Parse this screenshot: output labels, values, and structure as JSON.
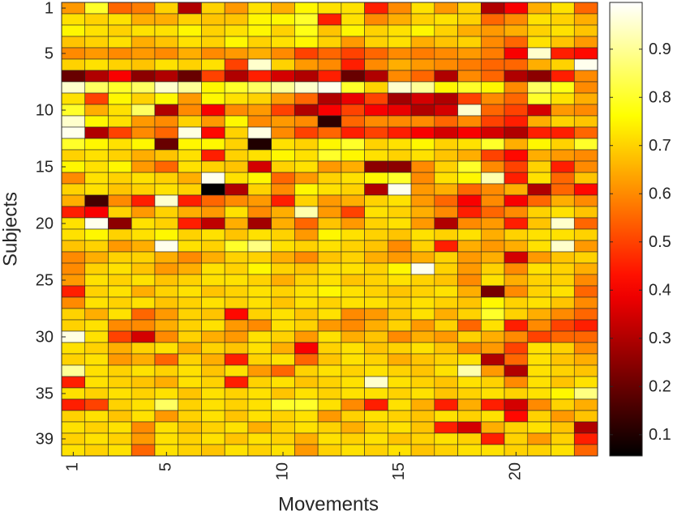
{
  "chart_data": {
    "type": "heatmap",
    "colormap": "hot",
    "x_label": "Movements",
    "y_label": "Subjects",
    "xlim": [
      0.5,
      23.5
    ],
    "ylim": [
      0.5,
      40.5
    ],
    "y_reversed": true,
    "xticks": [
      1,
      5,
      10,
      15,
      20
    ],
    "yticks": [
      1,
      5,
      10,
      15,
      20,
      25,
      30,
      35,
      39
    ],
    "clim": [
      0.056,
      0.997
    ],
    "cticks": [
      0.1,
      0.2,
      0.3,
      0.4,
      0.5,
      0.6,
      0.7,
      0.8,
      0.9
    ],
    "values": [
      [
        0.62,
        0.8,
        0.55,
        0.58,
        0.7,
        0.3,
        0.7,
        0.62,
        0.72,
        0.65,
        0.75,
        0.72,
        0.72,
        0.45,
        0.6,
        0.72,
        0.62,
        0.7,
        0.3,
        0.4,
        0.65,
        0.72,
        0.55
      ],
      [
        0.72,
        0.7,
        0.72,
        0.65,
        0.65,
        0.7,
        0.68,
        0.68,
        0.75,
        0.75,
        0.8,
        0.45,
        0.72,
        0.6,
        0.65,
        0.7,
        0.72,
        0.7,
        0.55,
        0.6,
        0.72,
        0.7,
        0.65
      ],
      [
        0.75,
        0.72,
        0.7,
        0.72,
        0.72,
        0.75,
        0.7,
        0.72,
        0.75,
        0.7,
        0.78,
        0.68,
        0.75,
        0.7,
        0.72,
        0.75,
        0.7,
        0.65,
        0.62,
        0.65,
        0.7,
        0.72,
        0.68
      ],
      [
        0.68,
        0.7,
        0.72,
        0.65,
        0.68,
        0.72,
        0.7,
        0.75,
        0.7,
        0.72,
        0.75,
        0.7,
        0.62,
        0.7,
        0.72,
        0.65,
        0.68,
        0.7,
        0.6,
        0.55,
        0.72,
        0.68,
        0.62
      ],
      [
        0.6,
        0.62,
        0.6,
        0.62,
        0.6,
        0.65,
        0.6,
        0.62,
        0.65,
        0.6,
        0.5,
        0.55,
        0.5,
        0.55,
        0.6,
        0.58,
        0.6,
        0.62,
        0.58,
        0.4,
        0.95,
        0.45,
        0.42
      ],
      [
        0.7,
        0.72,
        0.7,
        0.68,
        0.72,
        0.7,
        0.72,
        0.5,
        0.95,
        0.7,
        0.62,
        0.6,
        0.45,
        0.6,
        0.65,
        0.62,
        0.6,
        0.58,
        0.55,
        0.55,
        0.65,
        0.7,
        0.98
      ],
      [
        0.2,
        0.3,
        0.4,
        0.25,
        0.3,
        0.2,
        0.5,
        0.3,
        0.45,
        0.35,
        0.3,
        0.45,
        0.2,
        0.3,
        0.6,
        0.55,
        0.3,
        0.6,
        0.55,
        0.3,
        0.25,
        0.45,
        0.6
      ],
      [
        0.95,
        0.85,
        0.8,
        0.85,
        0.95,
        0.9,
        0.75,
        0.8,
        0.85,
        0.9,
        0.95,
        0.98,
        0.8,
        0.7,
        0.95,
        0.9,
        0.75,
        0.8,
        0.75,
        0.6,
        0.85,
        0.78,
        0.6
      ],
      [
        0.72,
        0.5,
        0.75,
        0.7,
        0.75,
        0.62,
        0.75,
        0.72,
        0.7,
        0.62,
        0.55,
        0.3,
        0.38,
        0.5,
        0.28,
        0.35,
        0.3,
        0.5,
        0.6,
        0.55,
        0.8,
        0.72,
        0.65
      ],
      [
        0.8,
        0.65,
        0.72,
        0.85,
        0.3,
        0.6,
        0.4,
        0.6,
        0.62,
        0.5,
        0.3,
        0.4,
        0.5,
        0.4,
        0.38,
        0.3,
        0.35,
        0.95,
        0.55,
        0.5,
        0.35,
        0.62,
        0.6
      ],
      [
        0.95,
        0.75,
        0.72,
        0.62,
        0.6,
        0.7,
        0.62,
        0.75,
        0.6,
        0.62,
        0.6,
        0.12,
        0.55,
        0.6,
        0.6,
        0.6,
        0.55,
        0.6,
        0.5,
        0.45,
        0.65,
        0.7,
        0.68
      ],
      [
        0.98,
        0.3,
        0.5,
        0.6,
        0.55,
        0.97,
        0.42,
        0.7,
        0.97,
        0.6,
        0.5,
        0.55,
        0.45,
        0.5,
        0.45,
        0.4,
        0.35,
        0.4,
        0.35,
        0.3,
        0.45,
        0.45,
        0.55
      ],
      [
        0.8,
        0.75,
        0.72,
        0.75,
        0.2,
        0.75,
        0.75,
        0.7,
        0.1,
        0.72,
        0.7,
        0.75,
        0.8,
        0.7,
        0.72,
        0.75,
        0.7,
        0.72,
        0.8,
        0.65,
        0.75,
        0.7,
        0.8
      ],
      [
        0.7,
        0.72,
        0.7,
        0.65,
        0.68,
        0.72,
        0.45,
        0.7,
        0.72,
        0.75,
        0.72,
        0.8,
        0.75,
        0.72,
        0.7,
        0.72,
        0.68,
        0.65,
        0.5,
        0.42,
        0.65,
        0.62,
        0.6
      ],
      [
        0.75,
        0.72,
        0.75,
        0.62,
        0.55,
        0.72,
        0.7,
        0.68,
        0.35,
        0.7,
        0.72,
        0.62,
        0.65,
        0.25,
        0.25,
        0.6,
        0.7,
        0.8,
        0.6,
        0.5,
        0.7,
        0.45,
        0.6
      ],
      [
        0.6,
        0.72,
        0.7,
        0.72,
        0.7,
        0.65,
        0.98,
        0.72,
        0.75,
        0.55,
        0.62,
        0.7,
        0.72,
        0.75,
        0.8,
        0.6,
        0.72,
        0.75,
        0.92,
        0.45,
        0.72,
        0.55,
        0.68
      ],
      [
        0.7,
        0.72,
        0.68,
        0.7,
        0.72,
        0.7,
        0.06,
        0.3,
        0.7,
        0.6,
        0.75,
        0.72,
        0.7,
        0.3,
        0.98,
        0.62,
        0.65,
        0.55,
        0.6,
        0.65,
        0.3,
        0.55,
        0.42
      ],
      [
        0.65,
        0.15,
        0.6,
        0.45,
        0.95,
        0.45,
        0.55,
        0.6,
        0.62,
        0.45,
        0.7,
        0.62,
        0.65,
        0.7,
        0.72,
        0.62,
        0.55,
        0.4,
        0.6,
        0.4,
        0.55,
        0.65,
        0.6
      ],
      [
        0.45,
        0.4,
        0.7,
        0.62,
        0.7,
        0.65,
        0.62,
        0.72,
        0.6,
        0.65,
        0.92,
        0.62,
        0.5,
        0.72,
        0.7,
        0.65,
        0.6,
        0.45,
        0.55,
        0.6,
        0.7,
        0.72,
        0.68
      ],
      [
        0.72,
        0.98,
        0.25,
        0.72,
        0.7,
        0.45,
        0.32,
        0.65,
        0.28,
        0.65,
        0.55,
        0.68,
        0.62,
        0.7,
        0.72,
        0.62,
        0.3,
        0.6,
        0.62,
        0.45,
        0.68,
        0.95,
        0.55
      ],
      [
        0.72,
        0.75,
        0.7,
        0.72,
        0.75,
        0.7,
        0.72,
        0.68,
        0.72,
        0.7,
        0.62,
        0.75,
        0.72,
        0.7,
        0.68,
        0.72,
        0.7,
        0.72,
        0.65,
        0.7,
        0.72,
        0.72,
        0.7
      ],
      [
        0.68,
        0.7,
        0.62,
        0.65,
        0.98,
        0.72,
        0.7,
        0.8,
        0.88,
        0.72,
        0.7,
        0.72,
        0.7,
        0.68,
        0.6,
        0.7,
        0.45,
        0.65,
        0.62,
        0.65,
        0.72,
        0.95,
        0.62
      ],
      [
        0.6,
        0.65,
        0.7,
        0.7,
        0.65,
        0.6,
        0.65,
        0.7,
        0.7,
        0.65,
        0.6,
        0.68,
        0.7,
        0.65,
        0.62,
        0.65,
        0.7,
        0.62,
        0.65,
        0.35,
        0.62,
        0.68,
        0.7
      ],
      [
        0.6,
        0.7,
        0.72,
        0.68,
        0.62,
        0.65,
        0.72,
        0.7,
        0.75,
        0.7,
        0.68,
        0.72,
        0.72,
        0.7,
        0.75,
        0.98,
        0.7,
        0.62,
        0.7,
        0.6,
        0.72,
        0.7,
        0.65
      ],
      [
        0.62,
        0.72,
        0.7,
        0.72,
        0.68,
        0.7,
        0.72,
        0.72,
        0.7,
        0.65,
        0.7,
        0.72,
        0.68,
        0.7,
        0.72,
        0.7,
        0.68,
        0.6,
        0.72,
        0.65,
        0.7,
        0.7,
        0.6
      ],
      [
        0.45,
        0.7,
        0.72,
        0.65,
        0.7,
        0.72,
        0.68,
        0.7,
        0.72,
        0.7,
        0.72,
        0.75,
        0.72,
        0.7,
        0.68,
        0.7,
        0.72,
        0.65,
        0.22,
        0.6,
        0.7,
        0.72,
        0.55
      ],
      [
        0.6,
        0.72,
        0.7,
        0.72,
        0.68,
        0.7,
        0.72,
        0.7,
        0.72,
        0.68,
        0.72,
        0.7,
        0.72,
        0.72,
        0.7,
        0.72,
        0.7,
        0.68,
        0.75,
        0.7,
        0.72,
        0.68,
        0.6
      ],
      [
        0.7,
        0.65,
        0.72,
        0.55,
        0.62,
        0.7,
        0.68,
        0.42,
        0.7,
        0.72,
        0.68,
        0.72,
        0.6,
        0.62,
        0.68,
        0.72,
        0.65,
        0.7,
        0.8,
        0.7,
        0.65,
        0.6,
        0.55
      ],
      [
        0.7,
        0.72,
        0.6,
        0.6,
        0.65,
        0.7,
        0.72,
        0.62,
        0.6,
        0.72,
        0.7,
        0.62,
        0.6,
        0.65,
        0.7,
        0.62,
        0.7,
        0.55,
        0.72,
        0.45,
        0.6,
        0.5,
        0.45
      ],
      [
        0.97,
        0.72,
        0.5,
        0.35,
        0.6,
        0.7,
        0.65,
        0.62,
        0.72,
        0.7,
        0.62,
        0.72,
        0.65,
        0.68,
        0.6,
        0.65,
        0.62,
        0.7,
        0.65,
        0.6,
        0.5,
        0.55,
        0.55
      ],
      [
        0.72,
        0.7,
        0.65,
        0.7,
        0.72,
        0.65,
        0.7,
        0.68,
        0.72,
        0.65,
        0.4,
        0.7,
        0.72,
        0.68,
        0.7,
        0.72,
        0.68,
        0.6,
        0.62,
        0.5,
        0.72,
        0.7,
        0.6
      ],
      [
        0.7,
        0.72,
        0.62,
        0.65,
        0.55,
        0.7,
        0.65,
        0.45,
        0.7,
        0.72,
        0.55,
        0.68,
        0.72,
        0.7,
        0.65,
        0.68,
        0.7,
        0.72,
        0.3,
        0.55,
        0.72,
        0.68,
        0.65
      ],
      [
        0.9,
        0.72,
        0.7,
        0.72,
        0.7,
        0.72,
        0.68,
        0.72,
        0.62,
        0.55,
        0.7,
        0.72,
        0.7,
        0.72,
        0.7,
        0.68,
        0.72,
        0.92,
        0.62,
        0.3,
        0.72,
        0.7,
        0.68
      ],
      [
        0.45,
        0.72,
        0.7,
        0.68,
        0.65,
        0.72,
        0.7,
        0.45,
        0.7,
        0.72,
        0.68,
        0.7,
        0.72,
        0.95,
        0.72,
        0.7,
        0.68,
        0.72,
        0.7,
        0.6,
        0.72,
        0.68,
        0.72
      ],
      [
        0.72,
        0.7,
        0.72,
        0.7,
        0.72,
        0.68,
        0.72,
        0.7,
        0.72,
        0.68,
        0.72,
        0.7,
        0.72,
        0.72,
        0.7,
        0.72,
        0.68,
        0.7,
        0.72,
        0.7,
        0.72,
        0.75,
        0.88
      ],
      [
        0.45,
        0.5,
        0.7,
        0.72,
        0.85,
        0.7,
        0.72,
        0.7,
        0.72,
        0.8,
        0.8,
        0.72,
        0.6,
        0.45,
        0.72,
        0.65,
        0.45,
        0.65,
        0.45,
        0.35,
        0.6,
        0.7,
        0.65
      ],
      [
        0.7,
        0.72,
        0.68,
        0.72,
        0.62,
        0.7,
        0.72,
        0.68,
        0.72,
        0.7,
        0.72,
        0.62,
        0.7,
        0.72,
        0.7,
        0.68,
        0.72,
        0.7,
        0.72,
        0.42,
        0.7,
        0.62,
        0.68
      ],
      [
        0.72,
        0.7,
        0.72,
        0.6,
        0.72,
        0.68,
        0.7,
        0.72,
        0.65,
        0.7,
        0.72,
        0.7,
        0.65,
        0.7,
        0.72,
        0.68,
        0.45,
        0.35,
        0.65,
        0.7,
        0.72,
        0.68,
        0.3
      ],
      [
        0.7,
        0.72,
        0.7,
        0.62,
        0.72,
        0.7,
        0.72,
        0.68,
        0.72,
        0.7,
        0.65,
        0.72,
        0.7,
        0.72,
        0.68,
        0.7,
        0.72,
        0.7,
        0.45,
        0.7,
        0.62,
        0.7,
        0.45
      ],
      [
        0.72,
        0.7,
        0.72,
        0.55,
        0.72,
        0.7,
        0.68,
        0.72,
        0.7,
        0.72,
        0.62,
        0.7,
        0.72,
        0.7,
        0.72,
        0.68,
        0.7,
        0.72,
        0.72,
        0.7,
        0.7,
        0.72,
        0.55
      ]
    ]
  }
}
